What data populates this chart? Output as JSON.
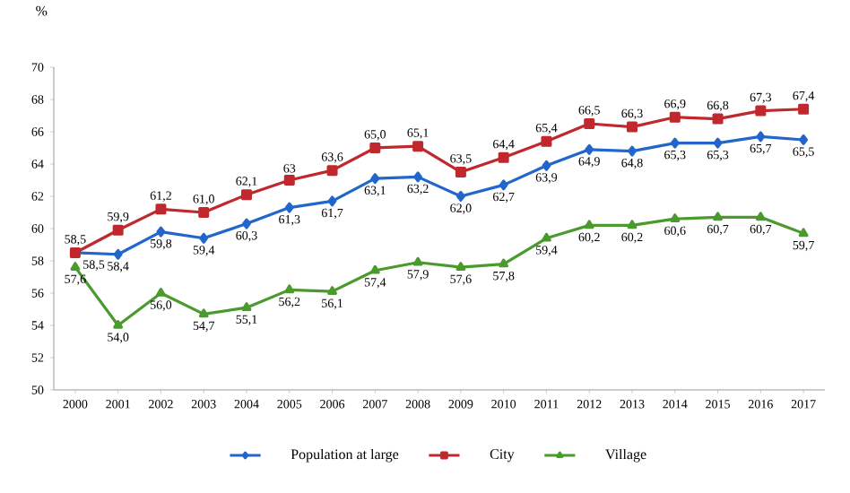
{
  "chart_data": {
    "type": "line",
    "ylabel": "%",
    "categories": [
      "2000",
      "2001",
      "2002",
      "2003",
      "2004",
      "2005",
      "2006",
      "2007",
      "2008",
      "2009",
      "2010",
      "2011",
      "2012",
      "2013",
      "2014",
      "2015",
      "2016",
      "2017"
    ],
    "series": [
      {
        "name": "Population at large",
        "color": "#2266cc",
        "marker": "diamond",
        "values": [
          58.5,
          58.4,
          59.8,
          59.4,
          60.3,
          61.3,
          61.7,
          63.1,
          63.2,
          62.0,
          62.7,
          63.9,
          64.9,
          64.8,
          65.3,
          65.3,
          65.7,
          65.5
        ],
        "value_labels": [
          "58,5",
          "58,4",
          "59,8",
          "59,4",
          "60,3",
          "61,3",
          "61,7",
          "63,1",
          "63,2",
          "62,0",
          "62,7",
          "63,9",
          "64,9",
          "64,8",
          "65,3",
          "65,3",
          "65,7",
          "65,5"
        ]
      },
      {
        "name": "City",
        "color": "#c0282d",
        "marker": "square",
        "values": [
          58.5,
          59.9,
          61.2,
          61.0,
          62.1,
          63,
          63.6,
          65.0,
          65.1,
          63.5,
          64.4,
          65.4,
          66.5,
          66.3,
          66.9,
          66.8,
          67.3,
          67.4
        ],
        "value_labels": [
          "58,5",
          "59,9",
          "61,2",
          "61,0",
          "62,1",
          "63",
          "63,6",
          "65,0",
          "65,1",
          "63,5",
          "64,4",
          "65,4",
          "66,5",
          "66,3",
          "66,9",
          "66,8",
          "67,3",
          "67,4"
        ]
      },
      {
        "name": "Village",
        "color": "#4a9a2e",
        "marker": "triangle",
        "values": [
          57.6,
          54.0,
          56.0,
          54.7,
          55.1,
          56.2,
          56.1,
          57.4,
          57.9,
          57.6,
          57.8,
          59.4,
          60.2,
          60.2,
          60.6,
          60.7,
          60.7,
          59.7
        ],
        "value_labels": [
          "57,6",
          "54,0",
          "56,0",
          "54,7",
          "55,1",
          "56,2",
          "56,1",
          "57,4",
          "57,9",
          "57,6",
          "57,8",
          "59,4",
          "60,2",
          "60,2",
          "60,6",
          "60,7",
          "60,7",
          "59,7"
        ]
      }
    ],
    "ylim": [
      50,
      70
    ],
    "yticks": [
      50,
      52,
      54,
      56,
      58,
      60,
      62,
      64,
      66,
      68,
      70
    ],
    "grid": false,
    "legend": "bottom",
    "line_style": "solid"
  }
}
